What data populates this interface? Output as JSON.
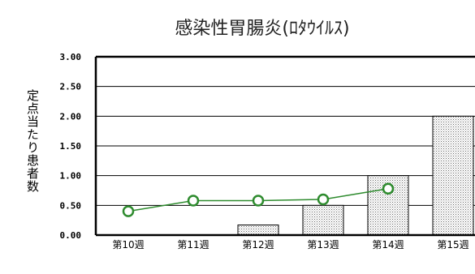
{
  "chart_data": {
    "type": "bar",
    "title": "感染性胃腸炎(ﾛﾀｳｲﾙｽ)",
    "ylabel": "定点当たり患者数",
    "xlabel": "",
    "ylim": [
      0,
      3
    ],
    "yticks": [
      "3.00",
      "2.50",
      "2.00",
      "1.50",
      "1.00",
      "0.50",
      "0.00"
    ],
    "categories": [
      "第10週",
      "第11週",
      "第12週",
      "第13週",
      "第14週",
      "第15週"
    ],
    "series": [
      {
        "type": "bar",
        "values": [
          0.0,
          0.0,
          0.17,
          0.5,
          1.0,
          2.0
        ]
      },
      {
        "type": "line",
        "values": [
          0.4,
          0.58,
          0.58,
          0.6,
          0.78,
          null
        ]
      }
    ],
    "grid": true,
    "legend": "none",
    "colors": {
      "line": "#2e8b2e",
      "marker_fill": "#ffffff",
      "bar_edge": "#000000"
    }
  }
}
